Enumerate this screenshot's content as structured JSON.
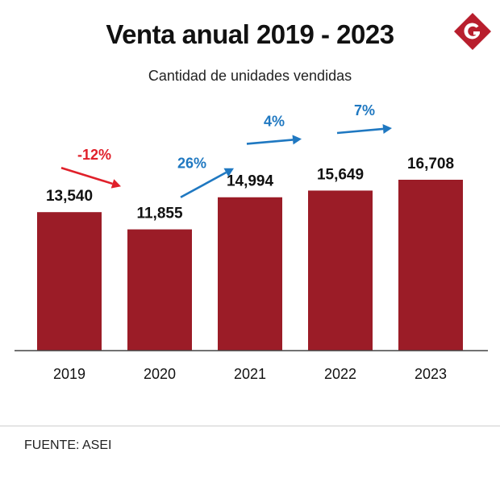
{
  "header": {
    "title": "Venta anual 2019 - 2023",
    "subtitle": "Cantidad de unidades vendidas"
  },
  "logo": {
    "letter": "G",
    "icon": "g-logo-icon",
    "color": "#b81e2d"
  },
  "footer": {
    "source": "FUENTE: ASEI"
  },
  "colors": {
    "bar": "#9b1c27",
    "decrease": "#e0202a",
    "increase": "#1f78c1",
    "axis": "#444444"
  },
  "chart_data": {
    "type": "bar",
    "categories": [
      "2019",
      "2020",
      "2021",
      "2022",
      "2023"
    ],
    "values": [
      13540,
      11855,
      14994,
      15649,
      16708
    ],
    "value_labels": [
      "13,540",
      "11,855",
      "14,994",
      "15,649",
      "16,708"
    ],
    "title": "Venta anual 2019 - 2023",
    "subtitle": "Cantidad de unidades vendidas",
    "xlabel": "",
    "ylabel": "",
    "ylim": [
      0,
      16708
    ],
    "grid": false,
    "legend": "none",
    "changes": [
      {
        "from": "2019",
        "to": "2020",
        "label": "-12%",
        "direction": "down"
      },
      {
        "from": "2020",
        "to": "2021",
        "label": "26%",
        "direction": "up"
      },
      {
        "from": "2021",
        "to": "2022",
        "label": "4%",
        "direction": "up"
      },
      {
        "from": "2022",
        "to": "2023",
        "label": "7%",
        "direction": "up"
      }
    ]
  }
}
